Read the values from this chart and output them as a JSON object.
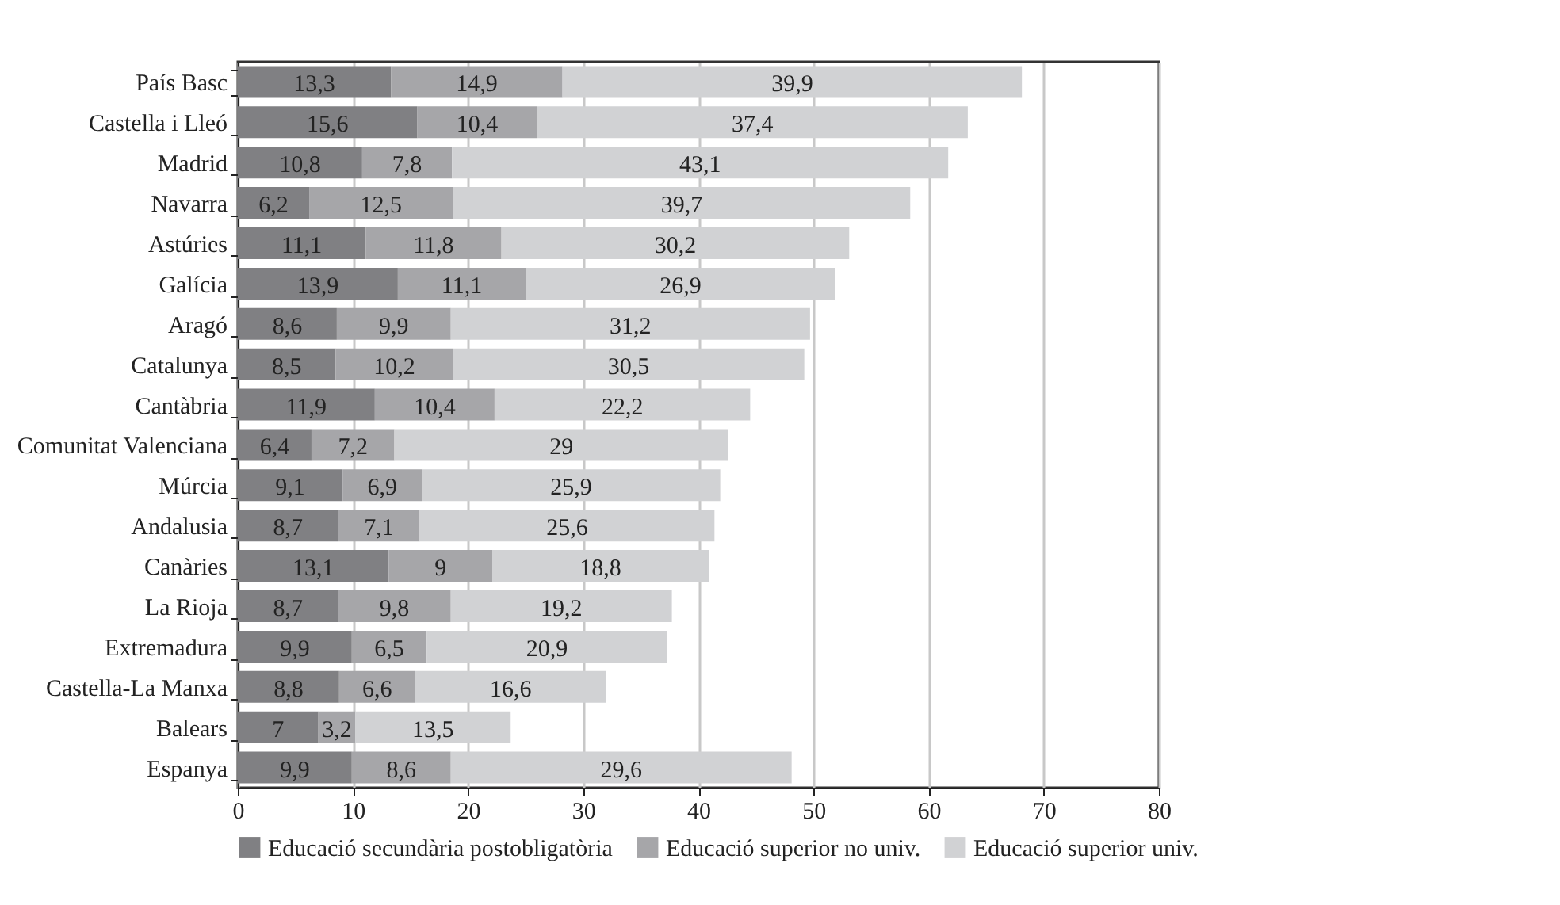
{
  "chart_data": {
    "type": "bar",
    "orientation": "horizontal",
    "stacked": true,
    "categories": [
      "País Basc",
      "Castella i Lleó",
      "Madrid",
      "Navarra",
      "Astúries",
      "Galícia",
      "Aragó",
      "Catalunya",
      "Cantàbria",
      "Comunitat Valenciana",
      "Múrcia",
      "Andalusia",
      "Canàries",
      "La Rioja",
      "Extremadura",
      "Castella-La Manxa",
      "Balears",
      "Espanya"
    ],
    "series": [
      {
        "name": "Educació secundària postobligatòria",
        "color": "#808083",
        "values": [
          13.3,
          15.6,
          10.8,
          6.2,
          11.1,
          13.9,
          8.6,
          8.5,
          11.9,
          6.4,
          9.1,
          8.7,
          13.1,
          8.7,
          9.9,
          8.8,
          7,
          9.9
        ],
        "value_labels": [
          "13,3",
          "15,6",
          "10,8",
          "6,2",
          "11,1",
          "13,9",
          "8,6",
          "8,5",
          "11,9",
          "6,4",
          "9,1",
          "8,7",
          "13,1",
          "8,7",
          "9,9",
          "8,8",
          "7",
          "9,9"
        ]
      },
      {
        "name": "Educació superior no univ.",
        "color": "#a6a6a9",
        "values": [
          14.9,
          10.4,
          7.8,
          12.5,
          11.8,
          11.1,
          9.9,
          10.2,
          10.4,
          7.2,
          6.9,
          7.1,
          9,
          9.8,
          6.5,
          6.6,
          3.2,
          8.6
        ],
        "value_labels": [
          "14,9",
          "10,4",
          "7,8",
          "12,5",
          "11,8",
          "11,1",
          "9,9",
          "10,2",
          "10,4",
          "7,2",
          "6,9",
          "7,1",
          "9",
          "9,8",
          "6,5",
          "6,6",
          "3,2",
          "8,6"
        ]
      },
      {
        "name": "Educació superior univ.",
        "color": "#d1d2d4",
        "values": [
          39.9,
          37.4,
          43.1,
          39.7,
          30.2,
          26.9,
          31.2,
          30.5,
          22.2,
          29,
          25.9,
          25.6,
          18.8,
          19.2,
          20.9,
          16.6,
          13.5,
          29.6
        ],
        "value_labels": [
          "39,9",
          "37,4",
          "43,1",
          "39,7",
          "30,2",
          "26,9",
          "31,2",
          "30,5",
          "22,2",
          "29",
          "25,9",
          "25,6",
          "18,8",
          "19,2",
          "20,9",
          "16,6",
          "13,5",
          "29,6"
        ]
      }
    ],
    "xlim": [
      0,
      80
    ],
    "xticks": [
      0,
      10,
      20,
      30,
      40,
      50,
      60,
      70,
      80
    ],
    "grid": "x",
    "legend": "bottom"
  }
}
